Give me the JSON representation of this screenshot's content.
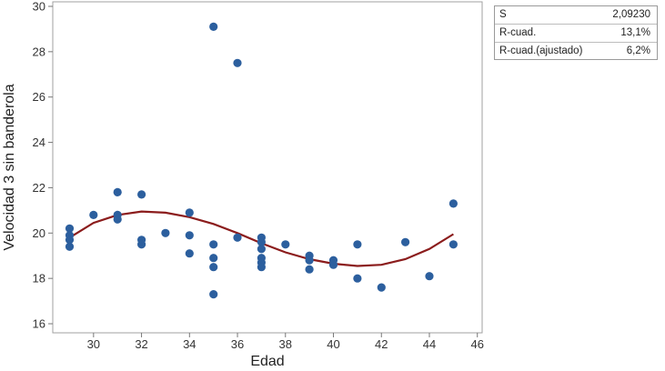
{
  "chart_data": {
    "type": "scatter",
    "title": "",
    "xlabel": "Edad",
    "ylabel": "Velocidad 3 sin banderola",
    "xlim": [
      28.3,
      46.2
    ],
    "ylim": [
      15.6,
      30.2
    ],
    "xticks": [
      30,
      32,
      34,
      36,
      38,
      40,
      42,
      44,
      46
    ],
    "yticks": [
      16,
      18,
      20,
      22,
      24,
      26,
      28,
      30
    ],
    "grid": false,
    "colors": {
      "points": "#2c5f9e",
      "fit_line": "#8b1c1c"
    },
    "points": [
      {
        "x": 29,
        "y": 20.2
      },
      {
        "x": 29,
        "y": 19.9
      },
      {
        "x": 29,
        "y": 19.7
      },
      {
        "x": 29,
        "y": 19.4
      },
      {
        "x": 30,
        "y": 20.8
      },
      {
        "x": 31,
        "y": 21.8
      },
      {
        "x": 31,
        "y": 20.8
      },
      {
        "x": 31,
        "y": 20.6
      },
      {
        "x": 32,
        "y": 21.7
      },
      {
        "x": 32,
        "y": 19.7
      },
      {
        "x": 32,
        "y": 19.5
      },
      {
        "x": 33,
        "y": 20.0
      },
      {
        "x": 34,
        "y": 20.9
      },
      {
        "x": 34,
        "y": 19.9
      },
      {
        "x": 34,
        "y": 19.1
      },
      {
        "x": 35,
        "y": 29.1
      },
      {
        "x": 35,
        "y": 19.5
      },
      {
        "x": 35,
        "y": 18.9
      },
      {
        "x": 35,
        "y": 18.5
      },
      {
        "x": 35,
        "y": 17.3
      },
      {
        "x": 36,
        "y": 27.5
      },
      {
        "x": 36,
        "y": 19.8
      },
      {
        "x": 37,
        "y": 19.8
      },
      {
        "x": 37,
        "y": 19.6
      },
      {
        "x": 37,
        "y": 19.3
      },
      {
        "x": 37,
        "y": 18.9
      },
      {
        "x": 37,
        "y": 18.7
      },
      {
        "x": 37,
        "y": 18.5
      },
      {
        "x": 38,
        "y": 19.5
      },
      {
        "x": 39,
        "y": 19.0
      },
      {
        "x": 39,
        "y": 18.8
      },
      {
        "x": 39,
        "y": 18.4
      },
      {
        "x": 40,
        "y": 18.8
      },
      {
        "x": 40,
        "y": 18.6
      },
      {
        "x": 41,
        "y": 19.5
      },
      {
        "x": 41,
        "y": 18.0
      },
      {
        "x": 42,
        "y": 17.6
      },
      {
        "x": 43,
        "y": 19.6
      },
      {
        "x": 44,
        "y": 18.1
      },
      {
        "x": 45,
        "y": 21.3
      },
      {
        "x": 45,
        "y": 19.5
      }
    ],
    "fit_line": {
      "type": "cubic",
      "x": [
        29,
        30,
        31,
        32,
        33,
        34,
        35,
        36,
        37,
        38,
        39,
        40,
        41,
        42,
        43,
        44,
        45
      ],
      "y": [
        19.8,
        20.45,
        20.8,
        20.95,
        20.9,
        20.7,
        20.4,
        20.0,
        19.55,
        19.15,
        18.85,
        18.65,
        18.55,
        18.6,
        18.85,
        19.3,
        19.95
      ]
    }
  },
  "stats": [
    {
      "name": "S",
      "value": "2,09230"
    },
    {
      "name": "R-cuad.",
      "value": "13,1%"
    },
    {
      "name": "R-cuad.(ajustado)",
      "value": "6,2%"
    }
  ]
}
